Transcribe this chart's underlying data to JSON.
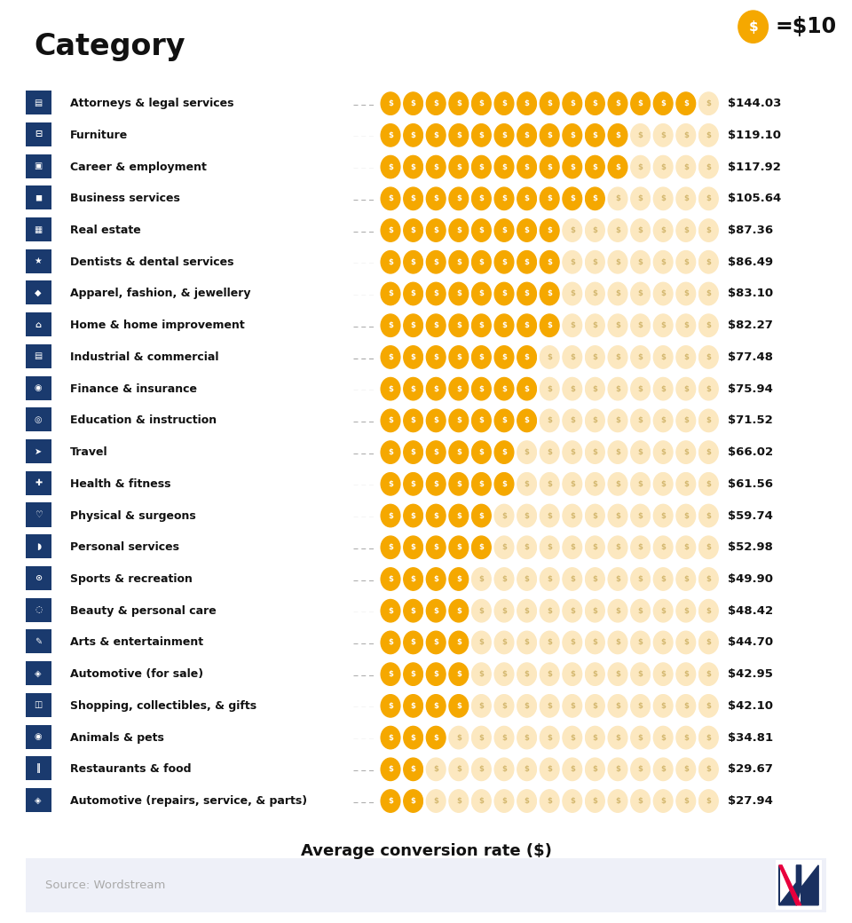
{
  "title": "Category",
  "title_color": "#111111",
  "subtitle_underline_color": "#ff1a5e",
  "legend_text": "=$10",
  "legend_coin_color": "#f5a800",
  "xlabel": "Average conversion rate ($)",
  "source_text": "Source: Wordstream",
  "background_color": "#ffffff",
  "footer_bg_color": "#eef0f8",
  "categories": [
    "Attorneys & legal services",
    "Furniture",
    "Career & employment",
    "Business services",
    "Real estate",
    "Dentists & dental services",
    "Apparel, fashion, & jewellery",
    "Home & home improvement",
    "Industrial & commercial",
    "Finance & insurance",
    "Education & instruction",
    "Travel",
    "Health & fitness",
    "Physical & surgeons",
    "Personal services",
    "Sports & recreation",
    "Beauty & personal care",
    "Arts & entertainment",
    "Automotive (for sale)",
    "Shopping, collectibles, & gifts",
    "Animals & pets",
    "Restaurants & food",
    "Automotive (repairs, service, & parts)"
  ],
  "values": [
    144.03,
    119.1,
    117.92,
    105.64,
    87.36,
    86.49,
    83.1,
    82.27,
    77.48,
    75.94,
    71.52,
    66.02,
    61.56,
    59.74,
    52.98,
    49.9,
    48.42,
    44.7,
    42.95,
    42.1,
    34.81,
    29.67,
    27.94
  ],
  "coin_color_active": "#f5a800",
  "coin_color_inactive": "#fce8c0",
  "max_coins": 15,
  "value_color": "#111111",
  "category_color": "#111111",
  "dashed_line_color": "#aaaaaa",
  "icon_color": "#1a3a6e"
}
